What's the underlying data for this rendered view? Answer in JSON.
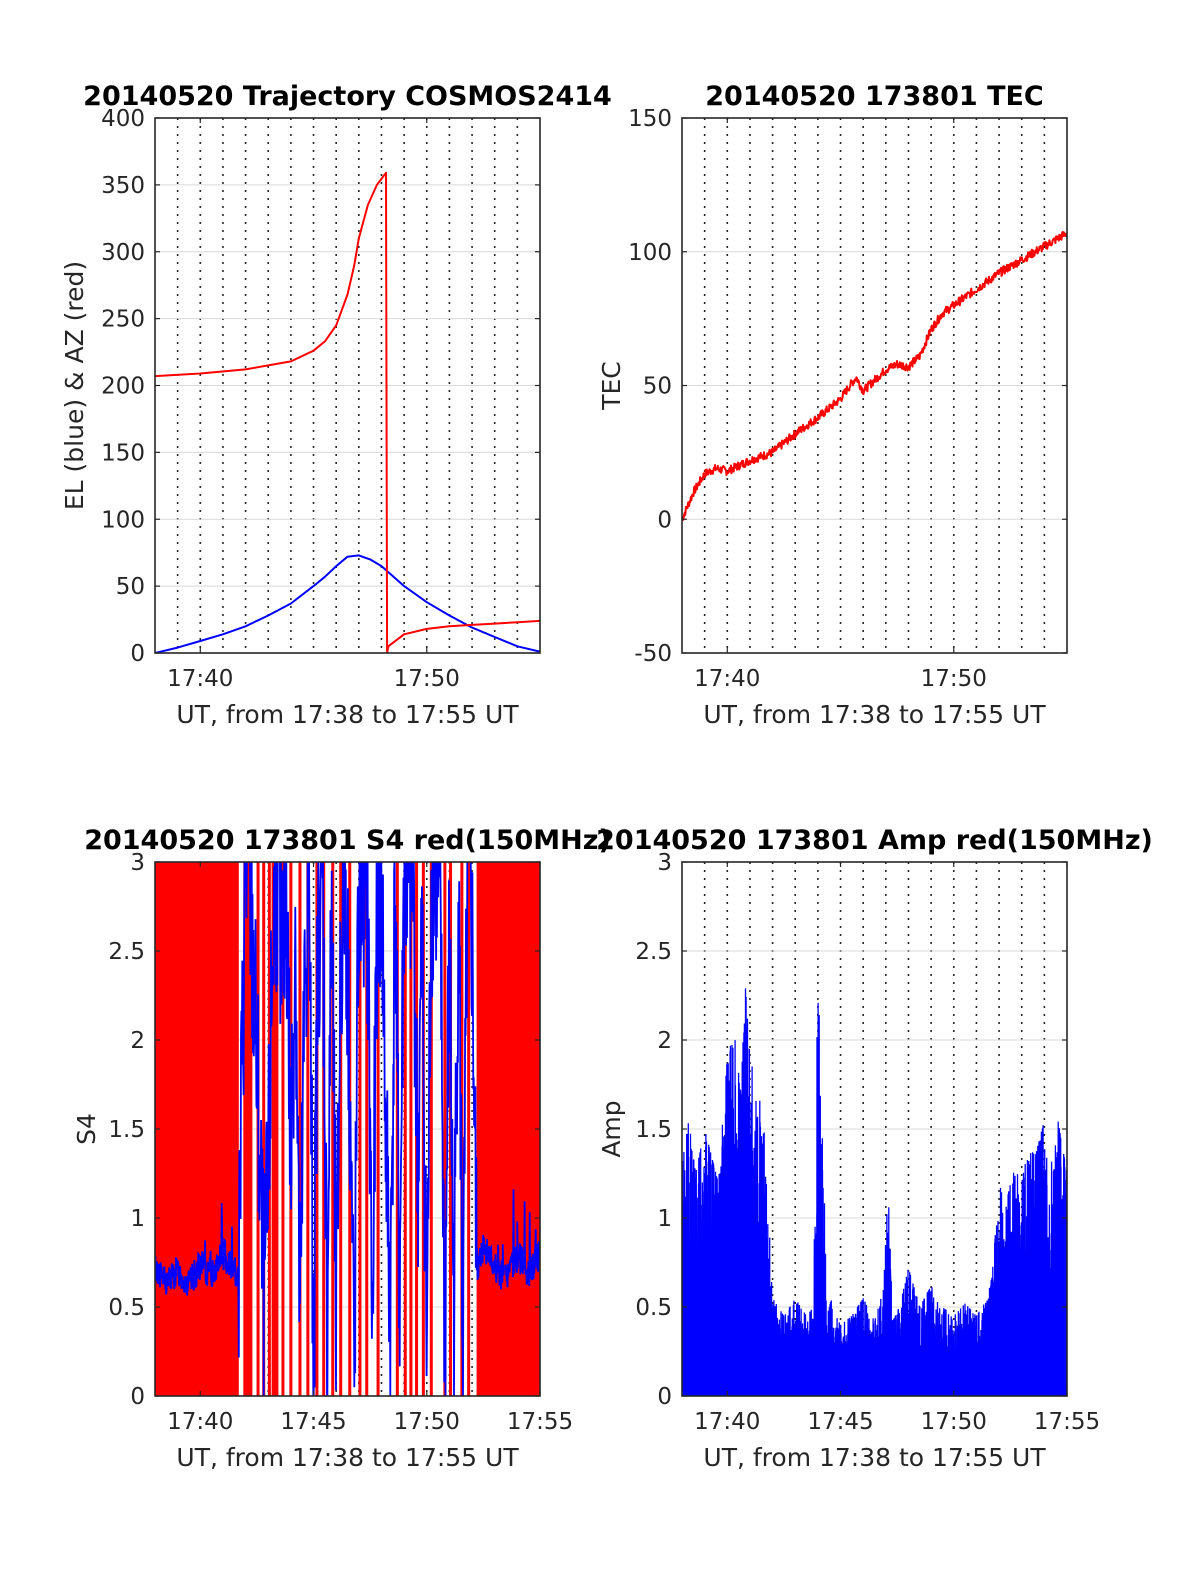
{
  "chart_data": [
    {
      "id": "trajectory",
      "type": "line",
      "title": "20140520 Trajectory COSMOS2414",
      "xlabel": "UT, from 17:38 to 17:55 UT",
      "ylabel": "EL (blue) & AZ (red)",
      "xlim": [
        0,
        17
      ],
      "ylim": [
        0,
        400
      ],
      "x_unit": "minutes after 17:38 UT",
      "x_ticks": [
        2,
        12
      ],
      "x_tick_labels": [
        "17:40",
        "17:50"
      ],
      "y_ticks": [
        0,
        50,
        100,
        150,
        200,
        250,
        300,
        350,
        400
      ],
      "y_tick_labels": [
        "0",
        "50",
        "100",
        "150",
        "200",
        "250",
        "300",
        "350",
        "400"
      ],
      "grid": true,
      "colors": {
        "EL": "#0000ff",
        "AZ": "#ff0000"
      },
      "series": [
        {
          "key": "EL",
          "color": "#0000ff",
          "x": [
            0,
            1,
            2,
            3,
            4,
            5,
            6,
            7,
            7.5,
            8,
            8.5,
            9,
            9.5,
            10,
            11,
            12,
            13,
            14,
            15,
            16,
            17
          ],
          "y": [
            0,
            4,
            9,
            14,
            20,
            28,
            37,
            50,
            57,
            65,
            72,
            73,
            70,
            65,
            50,
            38,
            28,
            19,
            12,
            5,
            1
          ]
        },
        {
          "key": "AZ",
          "color": "#ff0000",
          "x": [
            0,
            2,
            4,
            6,
            7,
            7.5,
            8,
            8.5,
            8.8,
            9,
            9.4,
            9.8,
            10.2,
            10.25,
            10.3,
            11,
            12,
            13,
            14,
            15,
            16,
            17
          ],
          "y": [
            207,
            209,
            212,
            218,
            226,
            233,
            245,
            268,
            290,
            310,
            335,
            350,
            359,
            0,
            5,
            14,
            18,
            20,
            21,
            22,
            23,
            24
          ]
        }
      ]
    },
    {
      "id": "tec",
      "type": "line",
      "title": "20140520 173801 TEC",
      "xlabel": "UT, from 17:38 to 17:55 UT",
      "ylabel": "TEC",
      "xlim": [
        0,
        17
      ],
      "ylim": [
        -50,
        150
      ],
      "x_unit": "minutes after 17:38 UT",
      "x_ticks": [
        2,
        12
      ],
      "x_tick_labels": [
        "17:40",
        "17:50"
      ],
      "y_ticks": [
        -50,
        0,
        50,
        100,
        150
      ],
      "y_tick_labels": [
        "-50",
        "0",
        "50",
        "100",
        "150"
      ],
      "grid": true,
      "colors": {
        "TEC": "#ff0000"
      },
      "series": [
        {
          "key": "TEC",
          "color": "#ff0000",
          "x": [
            0,
            0.5,
            1,
            1.5,
            2,
            3,
            4,
            5,
            6,
            7,
            7.5,
            7.7,
            8,
            8.5,
            9,
            9.5,
            10,
            10.5,
            11,
            11.5,
            12,
            13,
            14,
            15,
            16,
            17
          ],
          "y": [
            0,
            10,
            17,
            19,
            18,
            22,
            25,
            32,
            38,
            45,
            51,
            53,
            48,
            52,
            56,
            58,
            57,
            61,
            71,
            77,
            80,
            86,
            92,
            97,
            102,
            107
          ]
        }
      ]
    },
    {
      "id": "s4",
      "type": "line",
      "title": "20140520 173801 S4 red(150MHz)",
      "xlabel": "UT, from 17:38 to 17:55 UT",
      "ylabel": "S4",
      "xlim": [
        0,
        17
      ],
      "ylim": [
        0,
        3
      ],
      "x_unit": "minutes after 17:38 UT",
      "x_ticks": [
        2,
        7,
        12,
        17
      ],
      "x_tick_labels": [
        "17:40",
        "17:45",
        "17:50",
        "17:55"
      ],
      "y_ticks": [
        0,
        0.5,
        1,
        1.5,
        2,
        2.5,
        3
      ],
      "y_tick_labels": [
        "0",
        "0.5",
        "1",
        "1.5",
        "2",
        "2.5",
        "3"
      ],
      "grid": true,
      "colors": {
        "red_fill": "#ff0000",
        "blue": "#0000ff"
      },
      "red_bands": [
        [
          0,
          3.7
        ],
        [
          3.9,
          4.3
        ],
        [
          5.15,
          5.45
        ],
        [
          14.2,
          17
        ]
      ],
      "red_spikes": [
        4.55,
        4.8,
        5.05,
        5.65,
        6.0,
        6.4,
        6.75,
        7.15,
        7.45,
        7.85,
        8.2,
        8.6,
        9.05,
        9.35,
        9.85,
        10.7,
        11.05,
        11.3,
        11.55,
        11.85,
        12.2,
        12.8,
        13.05,
        13.55,
        13.85
      ],
      "series": [
        {
          "key": "S4 blue",
          "color": "#0000ff",
          "x": [
            0,
            0.5,
            1,
            1.5,
            2,
            2.5,
            3,
            3.5,
            3.7,
            3.8,
            4.0,
            4.2,
            4.4,
            4.6,
            4.8,
            5.0,
            5.2,
            5.4,
            5.6,
            5.8,
            6.0,
            6.2,
            6.4,
            6.6,
            6.8,
            7.0,
            7.2,
            7.4,
            7.6,
            7.8,
            8.0,
            8.2,
            8.4,
            8.6,
            8.8,
            9.0,
            9.2,
            9.4,
            9.6,
            9.8,
            10.0,
            10.2,
            10.4,
            10.6,
            10.8,
            11.0,
            11.2,
            11.4,
            11.6,
            11.8,
            12.0,
            12.2,
            12.4,
            12.6,
            12.8,
            13.0,
            13.2,
            13.4,
            13.6,
            13.8,
            14.0,
            14.2,
            14.5,
            15,
            15.5,
            16,
            16.5,
            17
          ],
          "y": [
            0.72,
            0.64,
            0.7,
            0.62,
            0.74,
            0.68,
            0.8,
            0.72,
            0.66,
            1.5,
            3.0,
            2.8,
            2.2,
            1.4,
            0.5,
            1.1,
            2.6,
            3.0,
            2.4,
            2.9,
            1.3,
            2.7,
            0.3,
            2.2,
            3.0,
            0.2,
            2.6,
            3.0,
            0.4,
            2.8,
            0.3,
            2.5,
            3.0,
            1.8,
            0.1,
            2.9,
            3.0,
            2.6,
            0.3,
            2.7,
            3.0,
            1.4,
            0.5,
            2.9,
            0.5,
            3.0,
            2.8,
            3.0,
            1.2,
            2.6,
            0.2,
            2.9,
            3.0,
            2.7,
            0.2,
            2.6,
            0.4,
            2.9,
            0.2,
            3.0,
            2.6,
            0.68,
            0.85,
            0.72,
            0.66,
            0.79,
            0.7,
            0.8
          ]
        }
      ]
    },
    {
      "id": "amp",
      "type": "line",
      "title": "20140520 173801 Amp red(150MHz)",
      "xlabel": "UT, from 17:38 to 17:55 UT",
      "ylabel": "Amp",
      "xlim": [
        0,
        17
      ],
      "ylim": [
        0,
        3
      ],
      "x_unit": "minutes after 17:38 UT",
      "x_ticks": [
        2,
        7,
        12,
        17
      ],
      "x_tick_labels": [
        "17:40",
        "17:45",
        "17:50",
        "17:55"
      ],
      "y_ticks": [
        0,
        0.5,
        1,
        1.5,
        2,
        2.5,
        3
      ],
      "y_tick_labels": [
        "0",
        "0.5",
        "1",
        "1.5",
        "2",
        "2.5",
        "3"
      ],
      "grid": true,
      "colors": {
        "Amp": "#0000ff"
      },
      "series": [
        {
          "key": "Amp",
          "color": "#0000ff",
          "x": [
            0,
            0.3,
            0.6,
            1.0,
            1.3,
            1.6,
            2.0,
            2.3,
            2.6,
            2.8,
            3.0,
            3.3,
            3.6,
            3.8,
            4.0,
            4.5,
            5.0,
            5.5,
            5.8,
            6.0,
            6.2,
            6.4,
            6.6,
            6.8,
            7.0,
            7.5,
            8.0,
            8.5,
            8.9,
            9.1,
            9.3,
            9.6,
            10.0,
            10.5,
            11.0,
            11.5,
            12.0,
            12.5,
            13.0,
            13.5,
            13.8,
            14.0,
            14.3,
            14.6,
            15.0,
            15.3,
            15.6,
            16.0,
            16.3,
            16.6,
            17.0
          ],
          "y": [
            1.3,
            1.55,
            1.25,
            1.5,
            1.35,
            1.2,
            1.9,
            2.05,
            1.7,
            2.3,
            1.9,
            1.75,
            1.55,
            1.1,
            0.55,
            0.45,
            0.55,
            0.45,
            0.5,
            2.37,
            1.6,
            0.45,
            0.55,
            0.45,
            0.4,
            0.45,
            0.55,
            0.42,
            0.6,
            1.18,
            0.42,
            0.5,
            0.72,
            0.5,
            0.62,
            0.5,
            0.45,
            0.52,
            0.45,
            0.55,
            0.85,
            1.2,
            1.05,
            1.3,
            1.2,
            1.4,
            1.35,
            1.55,
            1.3,
            1.55,
            1.25
          ]
        }
      ]
    }
  ]
}
